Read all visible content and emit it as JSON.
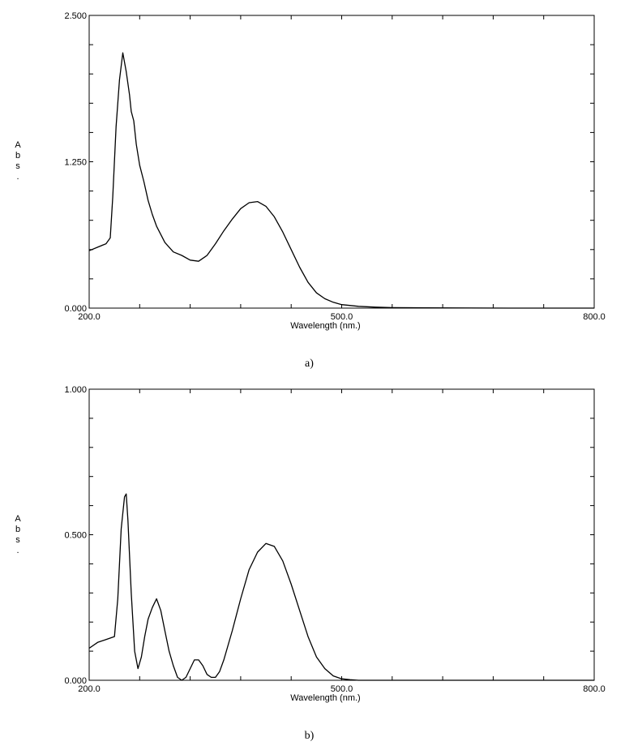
{
  "chart_data": [
    {
      "type": "line",
      "caption": "a)",
      "xlabel": "Wavelength (nm.)",
      "ylabel": "Abs.",
      "xlim": [
        200.0,
        800.0
      ],
      "ylim": [
        0.0,
        2.5
      ],
      "xtick_labels": [
        "200.0",
        "500.0",
        "800.0"
      ],
      "xtick_values": [
        200.0,
        500.0,
        800.0
      ],
      "ytick_labels": [
        "0.000",
        "1.250",
        "2.500"
      ],
      "ytick_values": [
        0.0,
        1.25,
        2.5
      ],
      "grid": false,
      "series": [
        {
          "x": [
            200,
            210,
            220,
            225,
            228,
            232,
            236,
            240,
            244,
            248,
            250,
            253,
            256,
            260,
            265,
            270,
            275,
            280,
            290,
            300,
            310,
            320,
            330,
            340,
            350,
            360,
            370,
            380,
            390,
            400,
            410,
            420,
            430,
            440,
            450,
            460,
            470,
            480,
            490,
            500,
            520,
            540,
            560,
            600,
            700,
            800
          ],
          "y": [
            0.49,
            0.52,
            0.55,
            0.6,
            0.95,
            1.55,
            1.95,
            2.18,
            2.02,
            1.82,
            1.68,
            1.6,
            1.4,
            1.22,
            1.08,
            0.92,
            0.8,
            0.7,
            0.56,
            0.48,
            0.45,
            0.41,
            0.4,
            0.45,
            0.55,
            0.66,
            0.76,
            0.85,
            0.9,
            0.91,
            0.87,
            0.78,
            0.65,
            0.5,
            0.35,
            0.22,
            0.13,
            0.08,
            0.05,
            0.03,
            0.015,
            0.008,
            0.004,
            0.002,
            0.0,
            0.0
          ]
        }
      ]
    },
    {
      "type": "line",
      "caption": "b)",
      "xlabel": "Wavelength (nm.)",
      "ylabel": "Abs.",
      "xlim": [
        200.0,
        800.0
      ],
      "ylim": [
        0.0,
        1.0
      ],
      "xtick_labels": [
        "200.0",
        "500.0",
        "800.0"
      ],
      "xtick_values": [
        200.0,
        500.0,
        800.0
      ],
      "ytick_labels": [
        "0.000",
        "0.500",
        "1.000"
      ],
      "ytick_values": [
        0.0,
        0.5,
        1.0
      ],
      "grid": false,
      "series": [
        {
          "x": [
            200,
            210,
            220,
            230,
            234,
            238,
            242,
            244,
            246,
            250,
            254,
            258,
            262,
            266,
            270,
            275,
            280,
            285,
            290,
            295,
            300,
            305,
            310,
            315,
            320,
            325,
            330,
            335,
            340,
            345,
            350,
            355,
            360,
            370,
            380,
            390,
            400,
            410,
            420,
            430,
            440,
            450,
            460,
            470,
            480,
            490,
            500,
            510,
            520,
            530,
            540,
            550,
            560,
            580,
            600,
            700,
            800
          ],
          "y": [
            0.11,
            0.13,
            0.14,
            0.15,
            0.28,
            0.52,
            0.63,
            0.64,
            0.55,
            0.3,
            0.1,
            0.04,
            0.08,
            0.15,
            0.21,
            0.25,
            0.28,
            0.24,
            0.17,
            0.1,
            0.05,
            0.01,
            0.0,
            0.01,
            0.04,
            0.07,
            0.07,
            0.05,
            0.02,
            0.01,
            0.01,
            0.03,
            0.07,
            0.17,
            0.28,
            0.38,
            0.44,
            0.47,
            0.46,
            0.41,
            0.33,
            0.24,
            0.15,
            0.08,
            0.04,
            0.015,
            0.005,
            0.002,
            0.0,
            0.0,
            0.0,
            0.0,
            0.0,
            0.0,
            0.0,
            0.0,
            0.0
          ]
        }
      ]
    }
  ]
}
